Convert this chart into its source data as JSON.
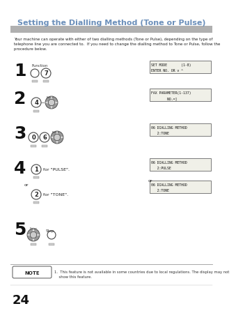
{
  "title": "Setting the Dialling Method (Tone or Pulse)",
  "title_color": "#6b8fba",
  "bg_color": "#ffffff",
  "header_bar_color": "#b0b0b0",
  "body_text": "Your machine can operate with either of two dialling methods (Tone or Pulse), depending on the type of\ntelephone line you are connected to.  If you need to change the dialling method to Tone or Pulse, follow the\nprocedure below.",
  "lcd_screens": [
    "SET MODE       (1-8)\nENTER NO. OR v ^",
    "FAX PARAMETER(1-137)\n        NO.=]",
    "06 DIALLING METHOD\n   2:TONE",
    "06 DIALLING METHOD\n   2:PULSE",
    "06 DIALLING METHOD\n   2:TONE"
  ],
  "note_text": "1.  This feature is not available in some countries due to local regulations. The display may not\n    show this feature.",
  "page_num": "24"
}
